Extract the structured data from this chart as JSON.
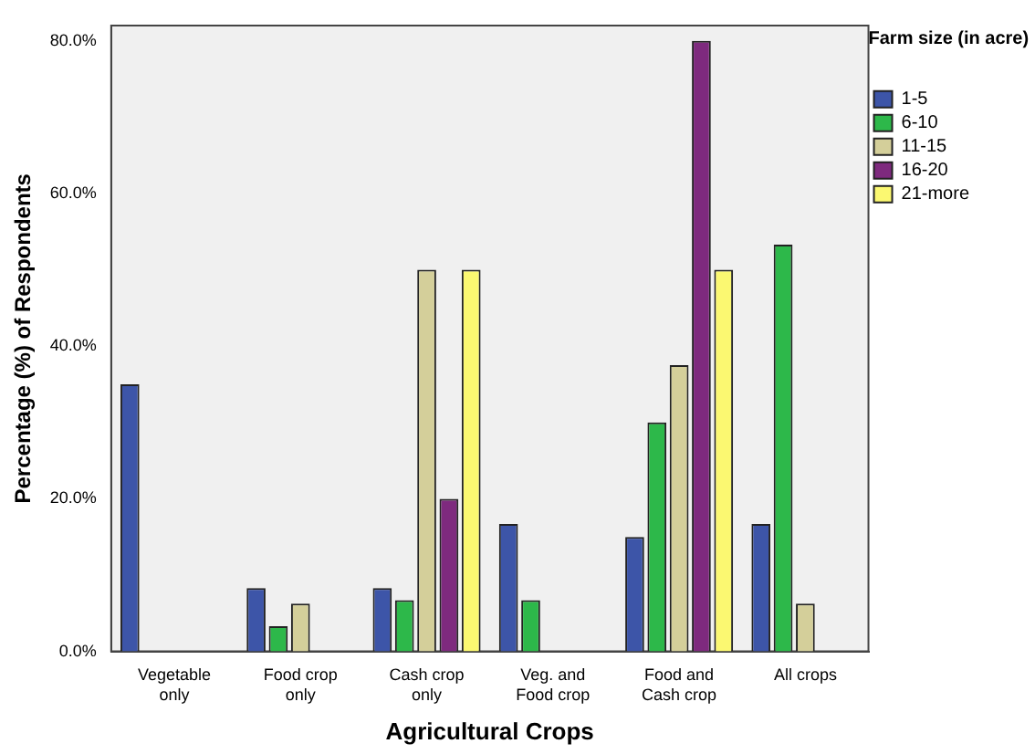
{
  "chart_data": {
    "type": "bar",
    "xlabel": "Agricultural Crops",
    "ylabel": "Percentage (%) of Respondents",
    "legend_title": "Farm size (in acre)",
    "categories": [
      "Vegetable\nonly",
      "Food crop\nonly",
      "Cash crop\nonly",
      "Veg. and\nFood crop",
      "Food and\nCash crop",
      "All crops"
    ],
    "series": [
      {
        "name": "1-5",
        "color": "#3d55a8",
        "values": [
          35,
          8.3,
          8.3,
          16.7,
          15,
          16.7
        ]
      },
      {
        "name": "6-10",
        "color": "#2db84a",
        "values": [
          null,
          3.3,
          6.7,
          6.7,
          30,
          53.3
        ]
      },
      {
        "name": "11-15",
        "color": "#d4cf9a",
        "values": [
          null,
          6.25,
          50,
          null,
          37.5,
          6.25
        ]
      },
      {
        "name": "16-20",
        "color": "#7e2a7e",
        "values": [
          null,
          null,
          20,
          null,
          80,
          null
        ]
      },
      {
        "name": "21-more",
        "color": "#fbf871",
        "values": [
          null,
          null,
          50,
          null,
          50,
          null
        ]
      }
    ],
    "ylim": [
      0,
      82
    ],
    "yticks": [
      {
        "value": 0,
        "label": "0.0%"
      },
      {
        "value": 20,
        "label": "20.0%"
      },
      {
        "value": 40,
        "label": "40.0%"
      },
      {
        "value": 60,
        "label": "60.0%"
      },
      {
        "value": 80,
        "label": "80.0%"
      }
    ],
    "grid": false,
    "legend": "top right"
  }
}
